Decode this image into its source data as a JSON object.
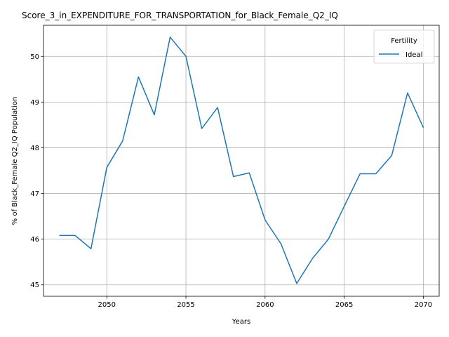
{
  "chart_data": {
    "type": "line",
    "title": "Score_3_in_EXPENDITURE_FOR_TRANSPORTATION_for_Black_Female_Q2_IQ",
    "xlabel": "Years",
    "ylabel": "% of Black_Female Q2_IQ Population",
    "xlim": [
      2046,
      2071
    ],
    "ylim": [
      44.75,
      50.68
    ],
    "x_ticks": [
      2050,
      2055,
      2060,
      2065,
      2070
    ],
    "y_ticks": [
      45,
      46,
      47,
      48,
      49,
      50
    ],
    "grid": true,
    "legend": {
      "title": "Fertility",
      "placement": "top-right"
    },
    "series": [
      {
        "name": "Ideal",
        "color": "#1f77b4",
        "x": [
          2047,
          2048,
          2049,
          2050,
          2051,
          2052,
          2053,
          2054,
          2055,
          2056,
          2057,
          2058,
          2059,
          2060,
          2061,
          2062,
          2063,
          2064,
          2065,
          2066,
          2067,
          2068,
          2069,
          2070
        ],
        "y": [
          46.08,
          46.08,
          45.79,
          47.57,
          48.15,
          49.55,
          48.72,
          50.42,
          50.0,
          48.42,
          48.88,
          47.37,
          47.45,
          46.42,
          45.9,
          45.03,
          45.58,
          46.0,
          46.72,
          47.43,
          47.43,
          47.83,
          49.2,
          48.44
        ]
      }
    ]
  }
}
